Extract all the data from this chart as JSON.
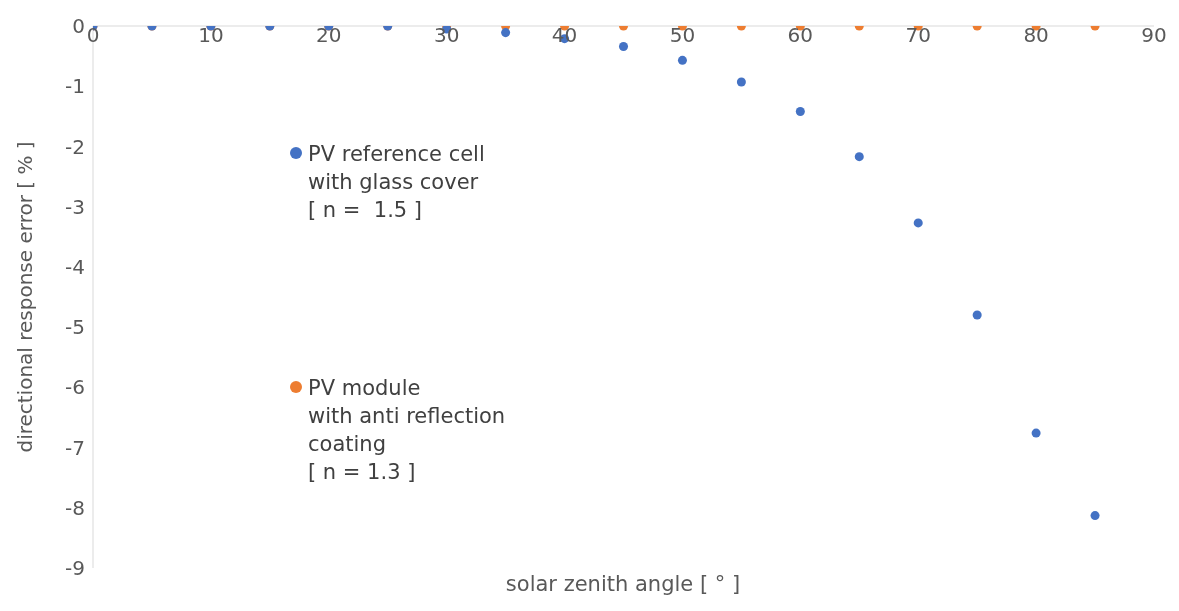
{
  "chart_data": {
    "type": "scatter",
    "xlabel": "solar zenith angle [ ° ]",
    "ylabel": "directional response error  [ % ]",
    "x": [
      0,
      5,
      10,
      15,
      20,
      25,
      30,
      35,
      40,
      45,
      50,
      55,
      60,
      65,
      70,
      75,
      80,
      85
    ],
    "series": [
      {
        "name": "PV reference cell\nwith glass cover\n[ n =  1.5 ]",
        "color": "#4472c4",
        "values": [
          0,
          0,
          0,
          0,
          0,
          0,
          -0.05,
          -0.11,
          -0.21,
          -0.34,
          -0.57,
          -0.93,
          -1.42,
          -2.17,
          -3.27,
          -4.8,
          -6.76,
          -8.13
        ]
      },
      {
        "name": "PV module\nwith anti reflection\ncoating\n[ n = 1.3 ]",
        "color": "#ed7d31",
        "values": [
          0,
          0,
          0,
          0,
          0,
          0,
          0,
          0,
          0,
          0,
          0,
          0,
          0,
          0,
          0,
          0,
          0,
          0
        ]
      }
    ],
    "xlim": [
      0,
      90
    ],
    "xticks": [
      0,
      10,
      20,
      30,
      40,
      50,
      60,
      70,
      80,
      90
    ],
    "ylim": [
      -9,
      0
    ],
    "yticks": [
      -9,
      -8,
      -7,
      -6,
      -5,
      -4,
      -3,
      -2,
      -1,
      0
    ],
    "grid": false,
    "legend": "left",
    "marker": "circle"
  }
}
